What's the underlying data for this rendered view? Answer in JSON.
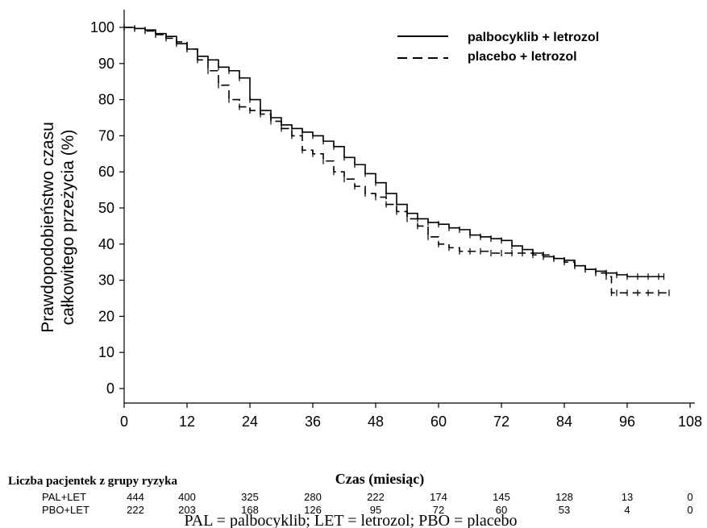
{
  "chart_data": {
    "type": "line",
    "title": "",
    "xlabel": "Czas (miesiąc)",
    "ylabel_line1": "Prawdopodobieństwo czasu",
    "ylabel_line2": "całkowitego przeżycia (%)",
    "xlim": [
      0,
      108
    ],
    "ylim": [
      0,
      100
    ],
    "x_ticks": [
      0,
      12,
      24,
      36,
      48,
      60,
      72,
      84,
      96,
      108
    ],
    "y_ticks": [
      0,
      10,
      20,
      30,
      40,
      50,
      60,
      70,
      80,
      90,
      100
    ],
    "grid": false,
    "legend_position": "top-right",
    "series": [
      {
        "name": "palbocyklib + letrozol",
        "line_style": "solid",
        "x": [
          0,
          2,
          4,
          6,
          8,
          10,
          12,
          14,
          16,
          18,
          20,
          22,
          24,
          26,
          28,
          30,
          32,
          34,
          36,
          38,
          40,
          42,
          44,
          46,
          48,
          50,
          52,
          54,
          56,
          58,
          60,
          62,
          64,
          66,
          68,
          70,
          72,
          74,
          76,
          78,
          80,
          82,
          84,
          86,
          88,
          90,
          92,
          94,
          96,
          98,
          100,
          102,
          103
        ],
        "y": [
          100,
          99.7,
          99.3,
          98.3,
          97.5,
          95.5,
          94,
          92,
          91,
          89,
          88,
          86,
          80,
          77,
          75,
          73,
          72,
          71,
          70,
          68.5,
          67,
          64,
          62,
          59.5,
          57,
          54,
          51,
          48.5,
          47,
          46,
          45.5,
          44.5,
          44,
          42.5,
          42,
          41.5,
          41,
          39.5,
          38.5,
          37.5,
          36.5,
          36,
          35.5,
          34,
          33,
          32.5,
          32,
          31.5,
          31,
          31,
          31,
          31,
          31
        ]
      },
      {
        "name": "placebo + letrozol",
        "line_style": "dashed",
        "x": [
          0,
          2,
          4,
          6,
          8,
          10,
          12,
          14,
          16,
          18,
          20,
          22,
          24,
          26,
          28,
          30,
          32,
          34,
          36,
          38,
          40,
          42,
          44,
          46,
          48,
          50,
          52,
          54,
          56,
          58,
          60,
          62,
          64,
          66,
          68,
          70,
          72,
          74,
          76,
          78,
          80,
          82,
          84,
          86,
          88,
          90,
          92,
          93,
          94,
          96,
          98,
          100,
          102,
          104
        ],
        "y": [
          100,
          99.7,
          99,
          98,
          97,
          96,
          94,
          91,
          88,
          84,
          80,
          78,
          77,
          76,
          74,
          72,
          70,
          66,
          65,
          63,
          60,
          58,
          56,
          54,
          53,
          51,
          49,
          47,
          45,
          42,
          40,
          39,
          38,
          38,
          38,
          37.5,
          37.5,
          37.5,
          37.5,
          37,
          37,
          36,
          35,
          34,
          33,
          32,
          31,
          26.5,
          26.5,
          26.5,
          26.5,
          26.5,
          26.5,
          26.5
        ]
      }
    ]
  },
  "risk_table": {
    "title": "Liczba pacjentek z grupy ryzyka",
    "rows": [
      {
        "label": "PAL+LET",
        "values": [
          "444",
          "400",
          "325",
          "280",
          "222",
          "174",
          "145",
          "128",
          "13",
          "0"
        ]
      },
      {
        "label": "PBO+LET",
        "values": [
          "222",
          "203",
          "168",
          "126",
          "95",
          "72",
          "60",
          "53",
          "4",
          "0"
        ]
      }
    ]
  },
  "footnote": "PAL = palbocyklib; LET = letrozol; PBO = placebo"
}
